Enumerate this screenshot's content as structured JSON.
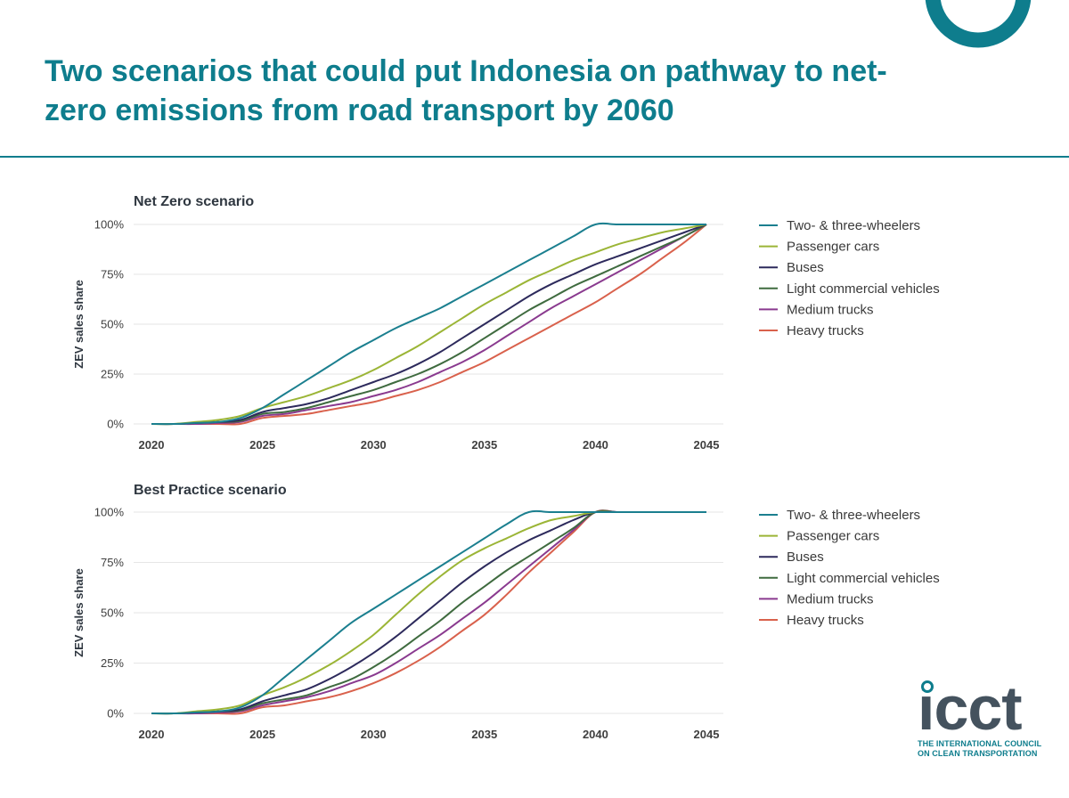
{
  "title": "Two scenarios that could put Indonesia on pathway to net-zero emissions from road transport by 2060",
  "colors": {
    "accent": "#0e7d8d",
    "series": [
      "#1b7f8f",
      "#9bb536",
      "#2d2a5c",
      "#3f6b3f",
      "#8a3a8f",
      "#d9614c"
    ]
  },
  "logo": {
    "word": "icct",
    "line1": "THE INTERNATIONAL COUNCIL",
    "line2": "ON CLEAN TRANSPORTATION"
  },
  "chart_data": [
    {
      "type": "line",
      "title": "Net Zero scenario",
      "ylabel": "ZEV sales share",
      "xlabel": "",
      "xlim": [
        2020,
        2045
      ],
      "ylim": [
        0,
        100
      ],
      "x_ticks": [
        "2020",
        "2025",
        "2030",
        "2035",
        "2040",
        "2045"
      ],
      "y_ticks": [
        "0%",
        "25%",
        "50%",
        "75%",
        "100%"
      ],
      "grid": "horizontal",
      "legend": "right",
      "x": [
        2020,
        2021,
        2022,
        2023,
        2024,
        2025,
        2026,
        2027,
        2028,
        2029,
        2030,
        2031,
        2032,
        2033,
        2034,
        2035,
        2036,
        2037,
        2038,
        2039,
        2040,
        2041,
        2042,
        2043,
        2044,
        2045
      ],
      "series": [
        {
          "name": "Two- & three-wheelers",
          "values": [
            0,
            0,
            0.5,
            1,
            3,
            8,
            15,
            22,
            29,
            36,
            42,
            48,
            53,
            58,
            64,
            70,
            76,
            82,
            88,
            94,
            100,
            100,
            100,
            100,
            100,
            100
          ]
        },
        {
          "name": "Passenger cars",
          "values": [
            0,
            0,
            1,
            2,
            4,
            8,
            11,
            14,
            18,
            22,
            27,
            33,
            39,
            46,
            53,
            60,
            66,
            72,
            77,
            82,
            86,
            90,
            93,
            96,
            98,
            100
          ]
        },
        {
          "name": "Buses",
          "values": [
            0,
            0,
            0.5,
            1,
            2,
            6,
            8,
            10,
            13,
            17,
            21,
            25,
            30,
            36,
            43,
            50,
            57,
            64,
            70,
            75,
            80,
            84,
            88,
            92,
            96,
            100
          ]
        },
        {
          "name": "Light commercial vehicles",
          "values": [
            0,
            0,
            0.5,
            1,
            1.5,
            5,
            6,
            8,
            11,
            14,
            17,
            21,
            25,
            30,
            36,
            43,
            50,
            57,
            63,
            69,
            74,
            79,
            84,
            89,
            94,
            100
          ]
        },
        {
          "name": "Medium trucks",
          "values": [
            0,
            0,
            0,
            0.5,
            1,
            4,
            5,
            7,
            9,
            11,
            14,
            17,
            21,
            26,
            31,
            37,
            44,
            51,
            58,
            64,
            70,
            76,
            82,
            88,
            94,
            100
          ]
        },
        {
          "name": "Heavy trucks",
          "values": [
            0,
            0,
            0,
            0,
            0,
            3,
            4,
            5,
            7,
            9,
            11,
            14,
            17,
            21,
            26,
            31,
            37,
            43,
            49,
            55,
            61,
            68,
            75,
            83,
            91,
            100
          ]
        }
      ]
    },
    {
      "type": "line",
      "title": "Best Practice scenario",
      "ylabel": "ZEV sales share",
      "xlabel": "",
      "xlim": [
        2020,
        2045
      ],
      "ylim": [
        0,
        100
      ],
      "x_ticks": [
        "2020",
        "2025",
        "2030",
        "2035",
        "2040",
        "2045"
      ],
      "y_ticks": [
        "0%",
        "25%",
        "50%",
        "75%",
        "100%"
      ],
      "grid": "horizontal",
      "legend": "right",
      "x": [
        2020,
        2021,
        2022,
        2023,
        2024,
        2025,
        2026,
        2027,
        2028,
        2029,
        2030,
        2031,
        2032,
        2033,
        2034,
        2035,
        2036,
        2037,
        2038,
        2039,
        2040,
        2041,
        2042,
        2043,
        2044,
        2045
      ],
      "series": [
        {
          "name": "Two- & three-wheelers",
          "values": [
            0,
            0,
            0.5,
            1,
            3,
            9,
            18,
            27,
            36,
            45,
            52,
            59,
            66,
            73,
            80,
            87,
            94,
            100,
            100,
            100,
            100,
            100,
            100,
            100,
            100,
            100
          ]
        },
        {
          "name": "Passenger cars",
          "values": [
            0,
            0,
            1,
            2,
            4,
            9,
            13,
            18,
            24,
            31,
            39,
            49,
            59,
            68,
            76,
            82,
            87,
            92,
            96,
            98,
            100,
            100,
            100,
            100,
            100,
            100
          ]
        },
        {
          "name": "Buses",
          "values": [
            0,
            0,
            0.5,
            1,
            2,
            6,
            9,
            12,
            17,
            23,
            30,
            38,
            47,
            56,
            65,
            73,
            80,
            86,
            91,
            96,
            100,
            100,
            100,
            100,
            100,
            100
          ]
        },
        {
          "name": "Light commercial vehicles",
          "values": [
            0,
            0,
            0.5,
            1,
            1.5,
            5,
            7,
            9,
            13,
            17,
            23,
            30,
            38,
            46,
            55,
            63,
            71,
            78,
            85,
            92,
            100,
            100,
            100,
            100,
            100,
            100
          ]
        },
        {
          "name": "Medium trucks",
          "values": [
            0,
            0,
            0,
            0.5,
            1,
            4,
            6,
            8,
            11,
            15,
            19,
            25,
            32,
            39,
            47,
            55,
            64,
            73,
            82,
            91,
            100,
            100,
            100,
            100,
            100,
            100
          ]
        },
        {
          "name": "Heavy trucks",
          "values": [
            0,
            0,
            0,
            0,
            0,
            3,
            4,
            6,
            8,
            11,
            15,
            20,
            26,
            33,
            41,
            49,
            59,
            70,
            80,
            90,
            100,
            100,
            100,
            100,
            100,
            100
          ]
        }
      ]
    }
  ]
}
